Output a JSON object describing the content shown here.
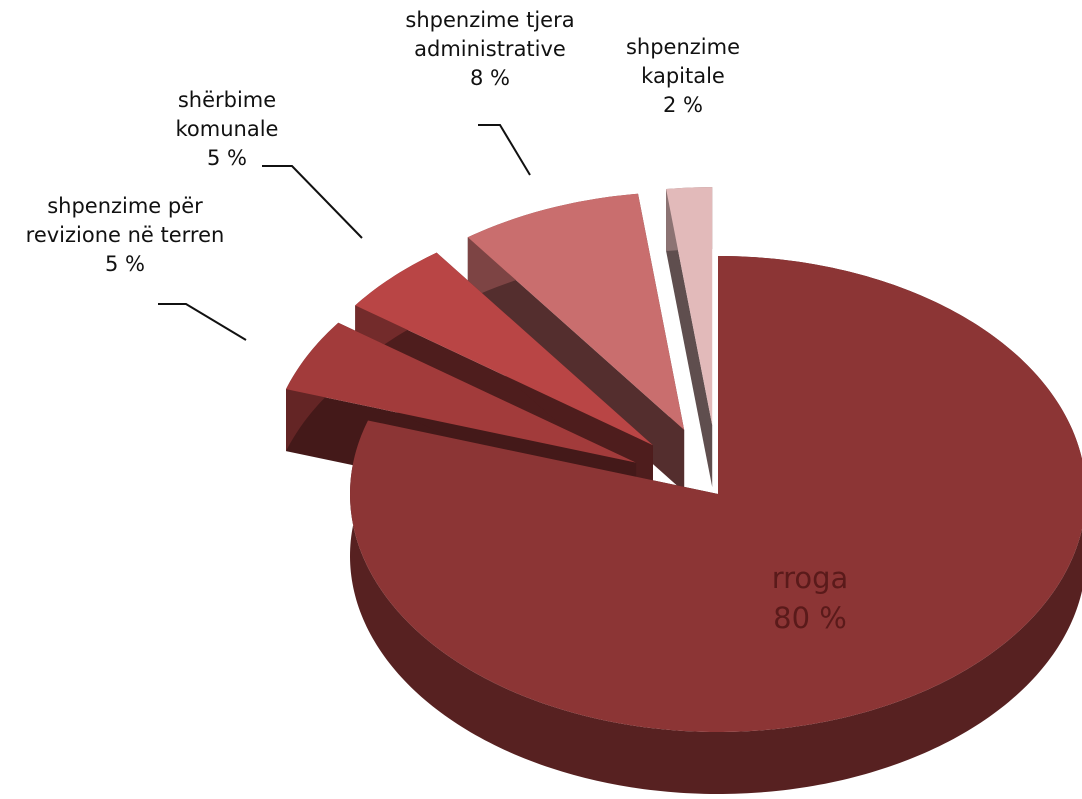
{
  "chart_data": {
    "type": "pie3d",
    "categories": [
      "rroga",
      "shpenzime për revizione në terren",
      "shërbime komunale",
      "shpenzime tjera administrative",
      "shpenzime kapitale"
    ],
    "values": [
      80,
      5,
      5,
      8,
      2
    ],
    "value_labels": [
      "80 %",
      "5 %",
      "5 %",
      "8 %",
      "2 %"
    ],
    "colors": [
      "#8c3535",
      "#a23b3b",
      "#b94545",
      "#c96e6e",
      "#e2baba"
    ]
  }
}
